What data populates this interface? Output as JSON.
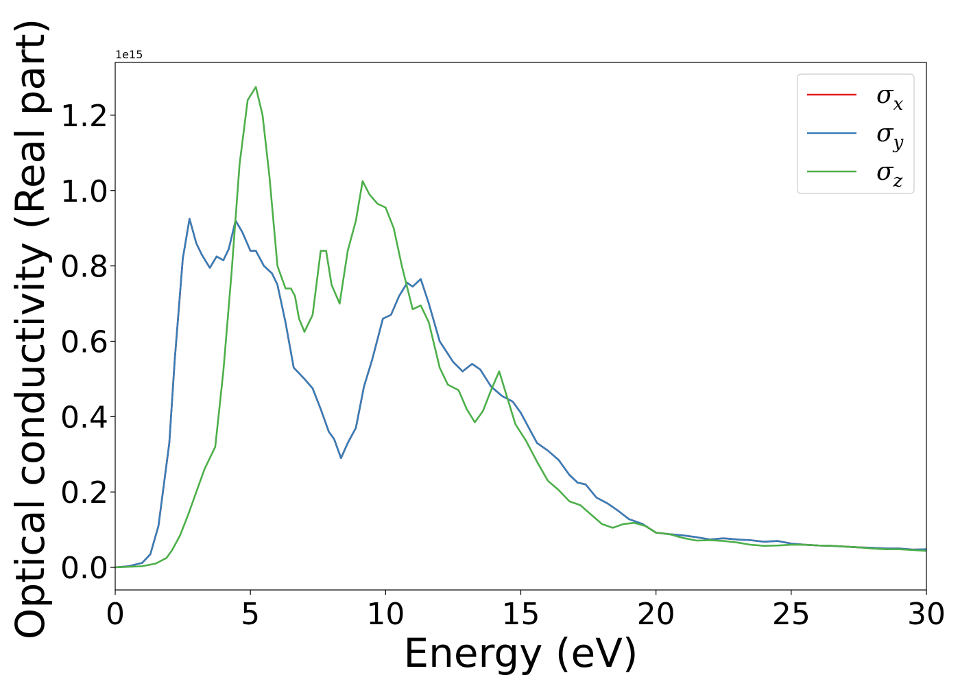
{
  "chart_data": {
    "type": "line",
    "xlabel": "Energy (eV)",
    "ylabel": "Optical conductivity (Real part)",
    "y_offset_label": "1e15",
    "xlim": [
      0,
      30
    ],
    "ylim": [
      -0.06,
      1.34
    ],
    "x_ticks": [
      0,
      5,
      10,
      15,
      20,
      25,
      30
    ],
    "x_tick_labels": [
      "0",
      "5",
      "10",
      "15",
      "20",
      "25",
      "30"
    ],
    "y_ticks": [
      0.0,
      0.2,
      0.4,
      0.6,
      0.8,
      1.0,
      1.2
    ],
    "y_tick_labels": [
      "0.0",
      "0.2",
      "0.4",
      "0.6",
      "0.8",
      "1.0",
      "1.2"
    ],
    "grid": false,
    "legend_position": "top-right",
    "colors": {
      "x": "#e41a1c",
      "y": "#377eb8",
      "z": "#4daf4a"
    },
    "series": [
      {
        "key": "x",
        "name": "σx",
        "legend_base": "σ",
        "legend_sub": "x",
        "color": "#e41a1c",
        "x": [
          0,
          0.5,
          1.0,
          1.3,
          1.6,
          1.8,
          2.0,
          2.2,
          2.5,
          2.75,
          3.0,
          3.2,
          3.5,
          3.75,
          4.0,
          4.2,
          4.45,
          4.7,
          5.0,
          5.2,
          5.5,
          5.8,
          6.0,
          6.3,
          6.6,
          7.0,
          7.3,
          7.6,
          7.9,
          8.1,
          8.35,
          8.6,
          8.9,
          9.2,
          9.5,
          9.9,
          10.2,
          10.5,
          10.8,
          11.0,
          11.3,
          11.6,
          12.0,
          12.5,
          12.85,
          13.2,
          13.5,
          13.9,
          14.3,
          14.7,
          15.0,
          15.3,
          15.6,
          16.0,
          16.4,
          16.8,
          17.1,
          17.4,
          17.8,
          18.2,
          18.6,
          19.0,
          19.5,
          20.0,
          20.5,
          21.0,
          21.5,
          22.0,
          22.5,
          23.0,
          23.5,
          24.0,
          24.5,
          25.0,
          25.5,
          26.0,
          26.5,
          27.0,
          27.5,
          28.0,
          28.5,
          29.0,
          29.5,
          30.0
        ],
        "y": [
          0.0,
          0.003,
          0.012,
          0.035,
          0.11,
          0.22,
          0.33,
          0.55,
          0.82,
          0.925,
          0.86,
          0.83,
          0.795,
          0.825,
          0.815,
          0.845,
          0.92,
          0.89,
          0.84,
          0.84,
          0.8,
          0.78,
          0.75,
          0.65,
          0.53,
          0.5,
          0.475,
          0.42,
          0.36,
          0.34,
          0.29,
          0.33,
          0.37,
          0.48,
          0.55,
          0.66,
          0.67,
          0.72,
          0.755,
          0.745,
          0.765,
          0.7,
          0.6,
          0.545,
          0.52,
          0.54,
          0.525,
          0.48,
          0.455,
          0.44,
          0.41,
          0.37,
          0.33,
          0.31,
          0.285,
          0.245,
          0.225,
          0.22,
          0.185,
          0.17,
          0.15,
          0.128,
          0.115,
          0.092,
          0.088,
          0.085,
          0.08,
          0.074,
          0.077,
          0.074,
          0.072,
          0.068,
          0.07,
          0.063,
          0.06,
          0.058,
          0.057,
          0.055,
          0.053,
          0.052,
          0.05,
          0.05,
          0.047,
          0.048
        ]
      },
      {
        "key": "y",
        "name": "σy",
        "legend_base": "σ",
        "legend_sub": "y",
        "color": "#377eb8",
        "x": [
          0,
          0.5,
          1.0,
          1.3,
          1.6,
          1.8,
          2.0,
          2.2,
          2.5,
          2.75,
          3.0,
          3.2,
          3.5,
          3.75,
          4.0,
          4.2,
          4.45,
          4.7,
          5.0,
          5.2,
          5.5,
          5.8,
          6.0,
          6.3,
          6.6,
          7.0,
          7.3,
          7.6,
          7.9,
          8.1,
          8.35,
          8.6,
          8.9,
          9.2,
          9.5,
          9.9,
          10.2,
          10.5,
          10.8,
          11.0,
          11.3,
          11.6,
          12.0,
          12.5,
          12.85,
          13.2,
          13.5,
          13.9,
          14.3,
          14.7,
          15.0,
          15.3,
          15.6,
          16.0,
          16.4,
          16.8,
          17.1,
          17.4,
          17.8,
          18.2,
          18.6,
          19.0,
          19.5,
          20.0,
          20.5,
          21.0,
          21.5,
          22.0,
          22.5,
          23.0,
          23.5,
          24.0,
          24.5,
          25.0,
          25.5,
          26.0,
          26.5,
          27.0,
          27.5,
          28.0,
          28.5,
          29.0,
          29.5,
          30.0
        ],
        "y": [
          0.0,
          0.003,
          0.012,
          0.035,
          0.11,
          0.22,
          0.33,
          0.55,
          0.82,
          0.925,
          0.86,
          0.83,
          0.795,
          0.825,
          0.815,
          0.845,
          0.92,
          0.89,
          0.84,
          0.84,
          0.8,
          0.78,
          0.75,
          0.65,
          0.53,
          0.5,
          0.475,
          0.42,
          0.36,
          0.34,
          0.29,
          0.33,
          0.37,
          0.48,
          0.55,
          0.66,
          0.67,
          0.72,
          0.755,
          0.745,
          0.765,
          0.7,
          0.6,
          0.545,
          0.52,
          0.54,
          0.525,
          0.48,
          0.455,
          0.44,
          0.41,
          0.37,
          0.33,
          0.31,
          0.285,
          0.245,
          0.225,
          0.22,
          0.185,
          0.17,
          0.15,
          0.128,
          0.115,
          0.092,
          0.088,
          0.085,
          0.08,
          0.074,
          0.077,
          0.074,
          0.072,
          0.068,
          0.07,
          0.063,
          0.06,
          0.058,
          0.057,
          0.055,
          0.053,
          0.052,
          0.05,
          0.05,
          0.047,
          0.048
        ]
      },
      {
        "key": "z",
        "name": "σz",
        "legend_base": "σ",
        "legend_sub": "z",
        "color": "#4daf4a",
        "x": [
          0,
          1.0,
          1.5,
          1.9,
          2.1,
          2.4,
          2.7,
          3.0,
          3.3,
          3.7,
          4.0,
          4.3,
          4.6,
          4.9,
          5.2,
          5.45,
          5.7,
          6.0,
          6.3,
          6.5,
          6.65,
          6.8,
          7.0,
          7.3,
          7.6,
          7.8,
          8.0,
          8.3,
          8.6,
          8.9,
          9.15,
          9.4,
          9.7,
          10.0,
          10.3,
          10.6,
          11.0,
          11.3,
          11.6,
          12.0,
          12.3,
          12.7,
          13.0,
          13.3,
          13.6,
          13.9,
          14.2,
          14.5,
          14.8,
          15.2,
          15.6,
          16.0,
          16.4,
          16.8,
          17.2,
          17.6,
          18.0,
          18.4,
          18.8,
          19.2,
          19.6,
          20.0,
          20.5,
          21.0,
          21.5,
          22.0,
          22.5,
          23.0,
          23.5,
          24.0,
          24.5,
          25.0,
          25.5,
          26.0,
          26.5,
          27.0,
          27.5,
          28.0,
          28.5,
          29.0,
          29.5,
          30.0
        ],
        "y": [
          0.0,
          0.003,
          0.01,
          0.025,
          0.045,
          0.085,
          0.14,
          0.2,
          0.26,
          0.32,
          0.52,
          0.78,
          1.07,
          1.24,
          1.275,
          1.2,
          1.04,
          0.8,
          0.74,
          0.74,
          0.72,
          0.66,
          0.625,
          0.67,
          0.84,
          0.84,
          0.75,
          0.7,
          0.84,
          0.92,
          1.025,
          0.99,
          0.965,
          0.955,
          0.9,
          0.8,
          0.685,
          0.695,
          0.65,
          0.53,
          0.485,
          0.47,
          0.42,
          0.385,
          0.415,
          0.47,
          0.52,
          0.45,
          0.38,
          0.335,
          0.28,
          0.23,
          0.205,
          0.175,
          0.165,
          0.14,
          0.115,
          0.105,
          0.115,
          0.118,
          0.11,
          0.092,
          0.088,
          0.078,
          0.071,
          0.072,
          0.07,
          0.066,
          0.06,
          0.057,
          0.058,
          0.06,
          0.06,
          0.058,
          0.057,
          0.055,
          0.053,
          0.05,
          0.048,
          0.048,
          0.046,
          0.044
        ]
      }
    ]
  }
}
